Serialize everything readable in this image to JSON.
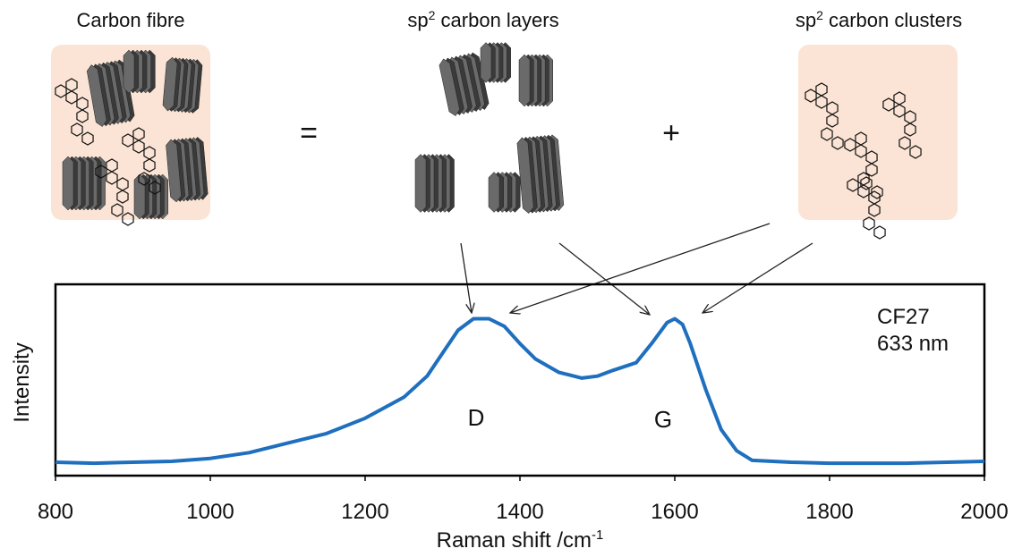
{
  "diagram": {
    "labels": [
      {
        "text": "Carbon fibre"
      },
      {
        "pre": "sp",
        "sup": "2",
        "post": " carbon layers"
      },
      {
        "pre": "sp",
        "sup": "2",
        "post": " carbon clusters"
      }
    ],
    "operators": [
      "=",
      "+"
    ]
  },
  "chart_data": {
    "type": "line",
    "x": [
      800,
      850,
      900,
      950,
      1000,
      1050,
      1100,
      1150,
      1200,
      1250,
      1280,
      1300,
      1320,
      1340,
      1360,
      1380,
      1400,
      1420,
      1450,
      1480,
      1500,
      1520,
      1550,
      1570,
      1590,
      1600,
      1610,
      1620,
      1640,
      1660,
      1680,
      1700,
      1750,
      1800,
      1900,
      2000
    ],
    "values": [
      7,
      6.5,
      7,
      7.5,
      9,
      12,
      17,
      22,
      30,
      41,
      52,
      64,
      76,
      82,
      82,
      78,
      69,
      61,
      54,
      51,
      52,
      55,
      59,
      69,
      80,
      82,
      79,
      69,
      45,
      24,
      13,
      8,
      7,
      6.5,
      6.5,
      7.5
    ],
    "color": "#1f6fbf",
    "xlim": [
      800,
      2000
    ],
    "xticks": [
      800,
      1000,
      1200,
      1400,
      1600,
      1800,
      2000
    ],
    "ylim": [
      0,
      100
    ],
    "xlabel": {
      "text": "Raman shift /cm",
      "sup": "-1"
    },
    "ylabel": "Intensity",
    "annotations": [
      "CF27",
      "633 nm",
      "D",
      "G"
    ]
  }
}
